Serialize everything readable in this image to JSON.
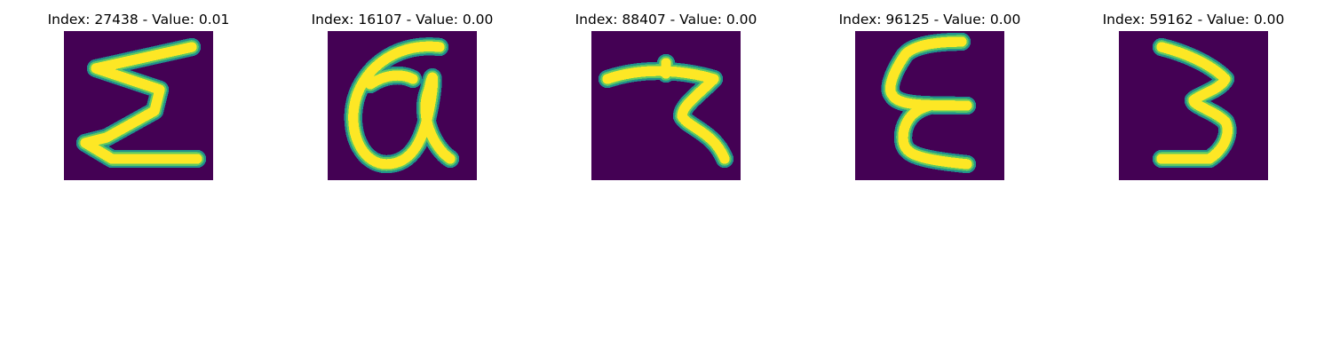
{
  "colormap": {
    "background": "#440154",
    "dark_edge": "#3b528b",
    "mid_edge": "#21918c",
    "light_edge": "#5ec962",
    "foreground": "#fde725"
  },
  "panels": [
    {
      "title": "Index: 27438 - Value: 0.01",
      "glyph": "handwritten-sigma-E"
    },
    {
      "title": "Index: 16107 - Value: 0.00",
      "glyph": "handwritten-at-a"
    },
    {
      "title": "Index: 88407 - Value: 0.00",
      "glyph": "handwritten-7-like"
    },
    {
      "title": "Index: 96125 - Value: 0.00",
      "glyph": "handwritten-epsilon-E"
    },
    {
      "title": "Index: 59162 - Value: 0.00",
      "glyph": "handwritten-3"
    }
  ]
}
